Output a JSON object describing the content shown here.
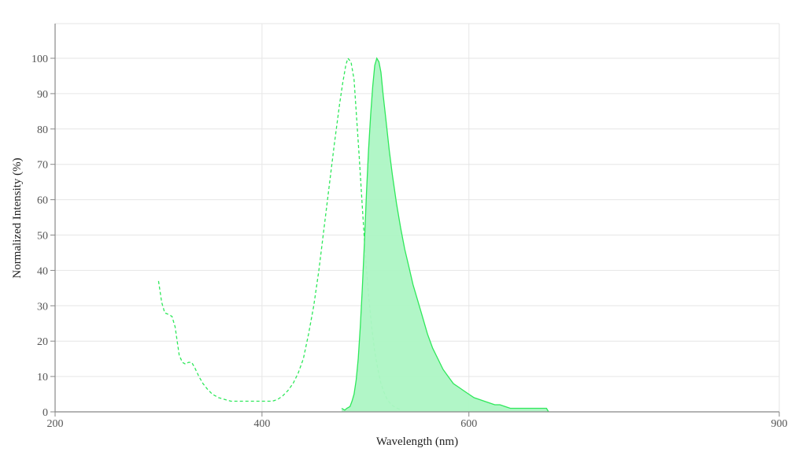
{
  "chart_data": {
    "type": "line",
    "title": "",
    "xlabel": "Wavelength (nm)",
    "ylabel": "Normalized Intensity (%)",
    "xlim": [
      200,
      900
    ],
    "ylim": [
      0,
      110
    ],
    "x_ticks": [
      200,
      400,
      600,
      900
    ],
    "y_ticks": [
      0,
      10,
      20,
      30,
      40,
      50,
      60,
      70,
      80,
      90,
      100
    ],
    "grid": true,
    "legend": "none",
    "series": [
      {
        "role": "excitation",
        "style": "dashed",
        "filled": false,
        "color": "#2ee85a",
        "points": [
          [
            300,
            37
          ],
          [
            303,
            31
          ],
          [
            306,
            28
          ],
          [
            310,
            27.5
          ],
          [
            313,
            27
          ],
          [
            316,
            24
          ],
          [
            318,
            20
          ],
          [
            320,
            16
          ],
          [
            323,
            14
          ],
          [
            326,
            13.5
          ],
          [
            329,
            14
          ],
          [
            332,
            14
          ],
          [
            335,
            12.5
          ],
          [
            339,
            10
          ],
          [
            343,
            8
          ],
          [
            347,
            6.5
          ],
          [
            352,
            5
          ],
          [
            358,
            4
          ],
          [
            364,
            3.5
          ],
          [
            370,
            3
          ],
          [
            385,
            3
          ],
          [
            400,
            3
          ],
          [
            410,
            3
          ],
          [
            415,
            3.5
          ],
          [
            420,
            4.5
          ],
          [
            425,
            6
          ],
          [
            430,
            8
          ],
          [
            435,
            11
          ],
          [
            440,
            15
          ],
          [
            445,
            22
          ],
          [
            450,
            30
          ],
          [
            455,
            40
          ],
          [
            460,
            52
          ],
          [
            465,
            64
          ],
          [
            470,
            76
          ],
          [
            475,
            87
          ],
          [
            478,
            93
          ],
          [
            481,
            98
          ],
          [
            483,
            100
          ],
          [
            486,
            99
          ],
          [
            489,
            94
          ],
          [
            491,
            85
          ],
          [
            494,
            72
          ],
          [
            497,
            58
          ],
          [
            500,
            44
          ],
          [
            503,
            33
          ],
          [
            506,
            24
          ],
          [
            509,
            17
          ],
          [
            512,
            12
          ],
          [
            515,
            8
          ],
          [
            518,
            5.5
          ],
          [
            521,
            3.5
          ],
          [
            525,
            2
          ],
          [
            529,
            1.2
          ],
          [
            535,
            0.5
          ]
        ]
      },
      {
        "role": "emission",
        "style": "solid",
        "filled": true,
        "color": "#2ee85a",
        "fill": "#adf5c4",
        "points": [
          [
            477,
            1
          ],
          [
            480,
            0.5
          ],
          [
            482,
            1
          ],
          [
            485,
            1.5
          ],
          [
            487,
            3
          ],
          [
            489,
            5
          ],
          [
            491,
            9
          ],
          [
            493,
            15
          ],
          [
            495,
            24
          ],
          [
            497,
            35
          ],
          [
            499,
            48
          ],
          [
            501,
            62
          ],
          [
            503,
            74
          ],
          [
            505,
            84
          ],
          [
            507,
            92
          ],
          [
            509,
            98
          ],
          [
            511,
            100
          ],
          [
            513,
            99
          ],
          [
            515,
            96
          ],
          [
            517,
            90
          ],
          [
            520,
            82
          ],
          [
            523,
            74
          ],
          [
            526,
            67
          ],
          [
            530,
            59
          ],
          [
            534,
            52
          ],
          [
            538,
            46
          ],
          [
            542,
            41
          ],
          [
            546,
            36
          ],
          [
            550,
            32
          ],
          [
            555,
            27
          ],
          [
            560,
            22
          ],
          [
            565,
            18
          ],
          [
            570,
            15
          ],
          [
            575,
            12
          ],
          [
            580,
            10
          ],
          [
            585,
            8
          ],
          [
            590,
            7
          ],
          [
            595,
            6
          ],
          [
            600,
            5
          ],
          [
            605,
            4
          ],
          [
            610,
            3.5
          ],
          [
            615,
            3
          ],
          [
            620,
            2.5
          ],
          [
            625,
            2
          ],
          [
            630,
            2
          ],
          [
            635,
            1.5
          ],
          [
            640,
            1
          ],
          [
            660,
            1
          ],
          [
            675,
            1
          ],
          [
            677,
            0
          ]
        ]
      }
    ]
  }
}
